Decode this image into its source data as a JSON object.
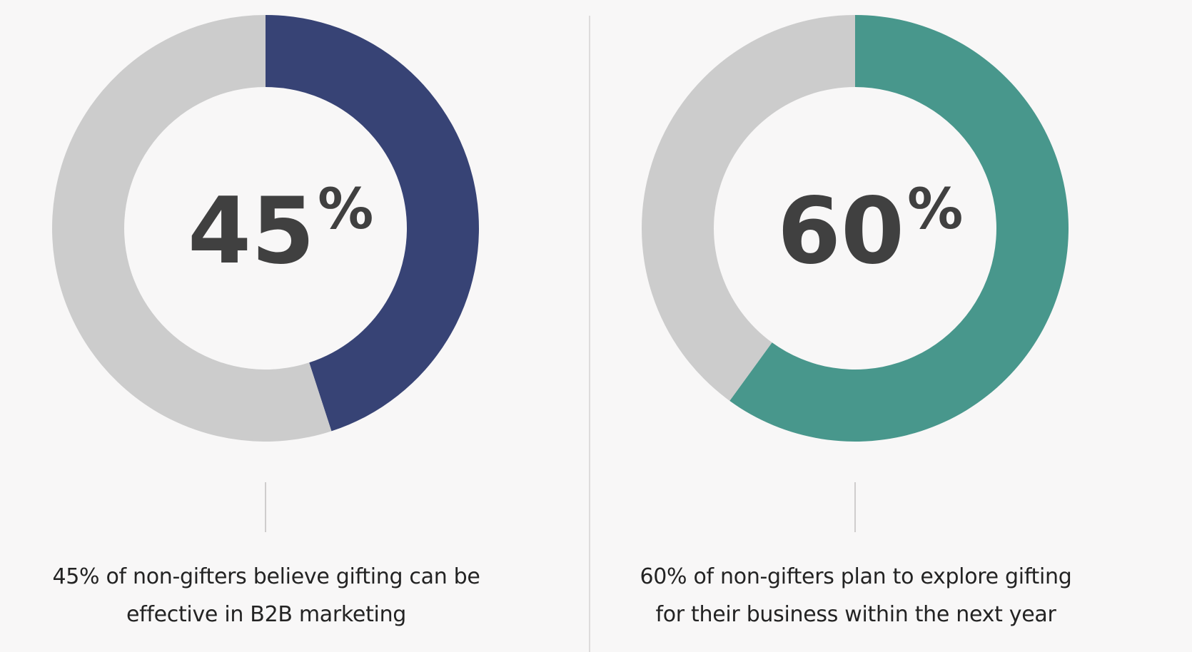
{
  "chart_data": [
    {
      "type": "pie",
      "variant": "donut",
      "labels": [
        "non-gifters who believe gifting can be effective in B2B marketing",
        "remainder"
      ],
      "values": [
        45,
        55
      ],
      "center_value": "45",
      "center_unit": "%",
      "caption": "45% of non-gifters believe gifting can be effective in B2B marketing",
      "caption_lines": [
        "45% of non-gifters believe gifting can be",
        "effective in B2B marketing"
      ],
      "colors": {
        "highlight": "#374375",
        "remainder": "#cccccc"
      }
    },
    {
      "type": "pie",
      "variant": "donut",
      "labels": [
        "non-gifters who plan to explore gifting for their business within the next year",
        "remainder"
      ],
      "values": [
        60,
        40
      ],
      "center_value": "60",
      "center_unit": "%",
      "caption": "60% of non-gifters plan to explore gifting for their business within the next year",
      "caption_lines": [
        "60% of non-gifters plan to explore gifting",
        "for their business within the next year"
      ],
      "colors": {
        "highlight": "#48978c",
        "remainder": "#cccccc"
      }
    }
  ],
  "colors": {
    "background": "#f8f7f7",
    "divider": "#dedcdc",
    "text": "#232323",
    "number_text": "#404040"
  }
}
